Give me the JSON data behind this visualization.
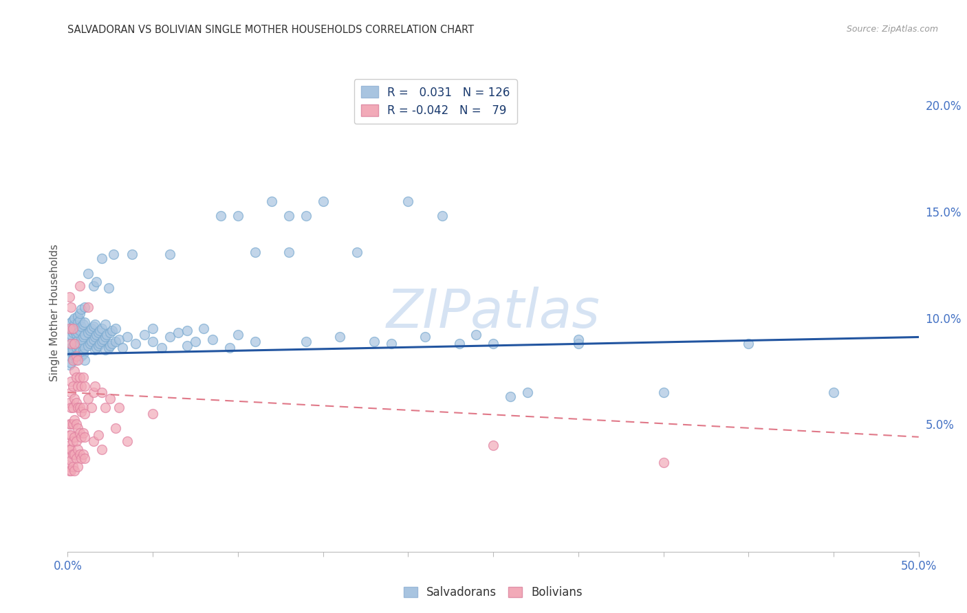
{
  "title": "SALVADORAN VS BOLIVIAN SINGLE MOTHER HOUSEHOLDS CORRELATION CHART",
  "source": "Source: ZipAtlas.com",
  "ylabel_label": "Single Mother Households",
  "right_yticks": [
    0.05,
    0.1,
    0.15,
    0.2
  ],
  "right_ytick_labels": [
    "5.0%",
    "10.0%",
    "15.0%",
    "20.0%"
  ],
  "xlim": [
    0.0,
    0.5
  ],
  "ylim": [
    -0.01,
    0.215
  ],
  "watermark": "ZIPatlas",
  "watermark_color": "#c5d8ef",
  "salvadoran_color": "#a8c4e0",
  "bolivian_color": "#f2aab8",
  "trendline_salvador_color": "#2255a0",
  "trendline_bolivia_color": "#e07888",
  "background_color": "#ffffff",
  "grid_color": "#d8d8d8",
  "title_color": "#333333",
  "axis_label_color": "#4472c4",
  "sal_trend": [
    0.083,
    0.091
  ],
  "bol_trend": [
    0.065,
    0.044
  ],
  "salvadorans_data": [
    [
      0.001,
      0.088
    ],
    [
      0.001,
      0.082
    ],
    [
      0.001,
      0.091
    ],
    [
      0.001,
      0.078
    ],
    [
      0.001,
      0.085
    ],
    [
      0.002,
      0.092
    ],
    [
      0.002,
      0.086
    ],
    [
      0.002,
      0.095
    ],
    [
      0.002,
      0.079
    ],
    [
      0.002,
      0.098
    ],
    [
      0.002,
      0.084
    ],
    [
      0.003,
      0.093
    ],
    [
      0.003,
      0.087
    ],
    [
      0.003,
      0.096
    ],
    [
      0.003,
      0.081
    ],
    [
      0.003,
      0.099
    ],
    [
      0.003,
      0.085
    ],
    [
      0.004,
      0.094
    ],
    [
      0.004,
      0.088
    ],
    [
      0.004,
      0.097
    ],
    [
      0.004,
      0.082
    ],
    [
      0.004,
      0.1
    ],
    [
      0.005,
      0.086
    ],
    [
      0.005,
      0.092
    ],
    [
      0.005,
      0.08
    ],
    [
      0.005,
      0.095
    ],
    [
      0.005,
      0.089
    ],
    [
      0.006,
      0.093
    ],
    [
      0.006,
      0.087
    ],
    [
      0.006,
      0.098
    ],
    [
      0.006,
      0.083
    ],
    [
      0.006,
      0.101
    ],
    [
      0.007,
      0.094
    ],
    [
      0.007,
      0.088
    ],
    [
      0.007,
      0.099
    ],
    [
      0.007,
      0.084
    ],
    [
      0.007,
      0.102
    ],
    [
      0.008,
      0.09
    ],
    [
      0.008,
      0.096
    ],
    [
      0.008,
      0.082
    ],
    [
      0.008,
      0.104
    ],
    [
      0.009,
      0.091
    ],
    [
      0.009,
      0.097
    ],
    [
      0.009,
      0.085
    ],
    [
      0.009,
      0.083
    ],
    [
      0.01,
      0.092
    ],
    [
      0.01,
      0.086
    ],
    [
      0.01,
      0.098
    ],
    [
      0.01,
      0.08
    ],
    [
      0.01,
      0.105
    ],
    [
      0.012,
      0.093
    ],
    [
      0.012,
      0.087
    ],
    [
      0.012,
      0.121
    ],
    [
      0.013,
      0.088
    ],
    [
      0.013,
      0.094
    ],
    [
      0.014,
      0.089
    ],
    [
      0.014,
      0.095
    ],
    [
      0.015,
      0.09
    ],
    [
      0.015,
      0.096
    ],
    [
      0.015,
      0.115
    ],
    [
      0.016,
      0.091
    ],
    [
      0.016,
      0.085
    ],
    [
      0.016,
      0.097
    ],
    [
      0.017,
      0.092
    ],
    [
      0.017,
      0.086
    ],
    [
      0.017,
      0.117
    ],
    [
      0.018,
      0.093
    ],
    [
      0.018,
      0.087
    ],
    [
      0.019,
      0.094
    ],
    [
      0.019,
      0.088
    ],
    [
      0.02,
      0.089
    ],
    [
      0.02,
      0.095
    ],
    [
      0.02,
      0.128
    ],
    [
      0.021,
      0.09
    ],
    [
      0.022,
      0.091
    ],
    [
      0.022,
      0.085
    ],
    [
      0.022,
      0.097
    ],
    [
      0.023,
      0.092
    ],
    [
      0.024,
      0.086
    ],
    [
      0.024,
      0.114
    ],
    [
      0.025,
      0.093
    ],
    [
      0.025,
      0.087
    ],
    [
      0.026,
      0.094
    ],
    [
      0.026,
      0.088
    ],
    [
      0.027,
      0.13
    ],
    [
      0.028,
      0.089
    ],
    [
      0.028,
      0.095
    ],
    [
      0.03,
      0.09
    ],
    [
      0.032,
      0.086
    ],
    [
      0.035,
      0.091
    ],
    [
      0.038,
      0.13
    ],
    [
      0.04,
      0.088
    ],
    [
      0.045,
      0.092
    ],
    [
      0.05,
      0.089
    ],
    [
      0.05,
      0.095
    ],
    [
      0.055,
      0.086
    ],
    [
      0.06,
      0.091
    ],
    [
      0.06,
      0.13
    ],
    [
      0.065,
      0.093
    ],
    [
      0.07,
      0.087
    ],
    [
      0.07,
      0.094
    ],
    [
      0.075,
      0.089
    ],
    [
      0.08,
      0.095
    ],
    [
      0.085,
      0.09
    ],
    [
      0.09,
      0.148
    ],
    [
      0.095,
      0.086
    ],
    [
      0.1,
      0.092
    ],
    [
      0.1,
      0.148
    ],
    [
      0.11,
      0.131
    ],
    [
      0.11,
      0.089
    ],
    [
      0.12,
      0.155
    ],
    [
      0.13,
      0.131
    ],
    [
      0.13,
      0.148
    ],
    [
      0.14,
      0.089
    ],
    [
      0.14,
      0.148
    ],
    [
      0.15,
      0.155
    ],
    [
      0.16,
      0.091
    ],
    [
      0.17,
      0.131
    ],
    [
      0.18,
      0.089
    ],
    [
      0.19,
      0.088
    ],
    [
      0.2,
      0.155
    ],
    [
      0.21,
      0.091
    ],
    [
      0.22,
      0.148
    ],
    [
      0.23,
      0.088
    ],
    [
      0.24,
      0.092
    ],
    [
      0.25,
      0.088
    ],
    [
      0.26,
      0.063
    ],
    [
      0.27,
      0.065
    ],
    [
      0.3,
      0.088
    ],
    [
      0.3,
      0.09
    ],
    [
      0.35,
      0.065
    ],
    [
      0.4,
      0.088
    ],
    [
      0.45,
      0.065
    ]
  ],
  "bolivians_data": [
    [
      0.001,
      0.11
    ],
    [
      0.001,
      0.095
    ],
    [
      0.001,
      0.06
    ],
    [
      0.001,
      0.05
    ],
    [
      0.001,
      0.045
    ],
    [
      0.001,
      0.04
    ],
    [
      0.001,
      0.038
    ],
    [
      0.001,
      0.035
    ],
    [
      0.001,
      0.03
    ],
    [
      0.001,
      0.028
    ],
    [
      0.002,
      0.105
    ],
    [
      0.002,
      0.088
    ],
    [
      0.002,
      0.07
    ],
    [
      0.002,
      0.065
    ],
    [
      0.002,
      0.058
    ],
    [
      0.002,
      0.05
    ],
    [
      0.002,
      0.045
    ],
    [
      0.002,
      0.038
    ],
    [
      0.002,
      0.033
    ],
    [
      0.002,
      0.028
    ],
    [
      0.003,
      0.095
    ],
    [
      0.003,
      0.08
    ],
    [
      0.003,
      0.068
    ],
    [
      0.003,
      0.058
    ],
    [
      0.003,
      0.05
    ],
    [
      0.003,
      0.042
    ],
    [
      0.003,
      0.036
    ],
    [
      0.003,
      0.03
    ],
    [
      0.004,
      0.088
    ],
    [
      0.004,
      0.075
    ],
    [
      0.004,
      0.062
    ],
    [
      0.004,
      0.052
    ],
    [
      0.004,
      0.044
    ],
    [
      0.004,
      0.036
    ],
    [
      0.004,
      0.028
    ],
    [
      0.005,
      0.082
    ],
    [
      0.005,
      0.072
    ],
    [
      0.005,
      0.06
    ],
    [
      0.005,
      0.05
    ],
    [
      0.005,
      0.042
    ],
    [
      0.005,
      0.034
    ],
    [
      0.006,
      0.08
    ],
    [
      0.006,
      0.068
    ],
    [
      0.006,
      0.058
    ],
    [
      0.006,
      0.048
    ],
    [
      0.006,
      0.038
    ],
    [
      0.006,
      0.03
    ],
    [
      0.007,
      0.115
    ],
    [
      0.007,
      0.072
    ],
    [
      0.007,
      0.058
    ],
    [
      0.007,
      0.046
    ],
    [
      0.007,
      0.036
    ],
    [
      0.008,
      0.068
    ],
    [
      0.008,
      0.056
    ],
    [
      0.008,
      0.044
    ],
    [
      0.008,
      0.034
    ],
    [
      0.009,
      0.072
    ],
    [
      0.009,
      0.058
    ],
    [
      0.009,
      0.046
    ],
    [
      0.009,
      0.036
    ],
    [
      0.01,
      0.068
    ],
    [
      0.01,
      0.055
    ],
    [
      0.01,
      0.044
    ],
    [
      0.01,
      0.034
    ],
    [
      0.012,
      0.105
    ],
    [
      0.012,
      0.062
    ],
    [
      0.014,
      0.058
    ],
    [
      0.015,
      0.065
    ],
    [
      0.015,
      0.042
    ],
    [
      0.016,
      0.068
    ],
    [
      0.018,
      0.045
    ],
    [
      0.02,
      0.065
    ],
    [
      0.02,
      0.038
    ],
    [
      0.022,
      0.058
    ],
    [
      0.025,
      0.062
    ],
    [
      0.028,
      0.048
    ],
    [
      0.03,
      0.058
    ],
    [
      0.035,
      0.042
    ],
    [
      0.05,
      0.055
    ],
    [
      0.25,
      0.04
    ],
    [
      0.35,
      0.032
    ]
  ]
}
